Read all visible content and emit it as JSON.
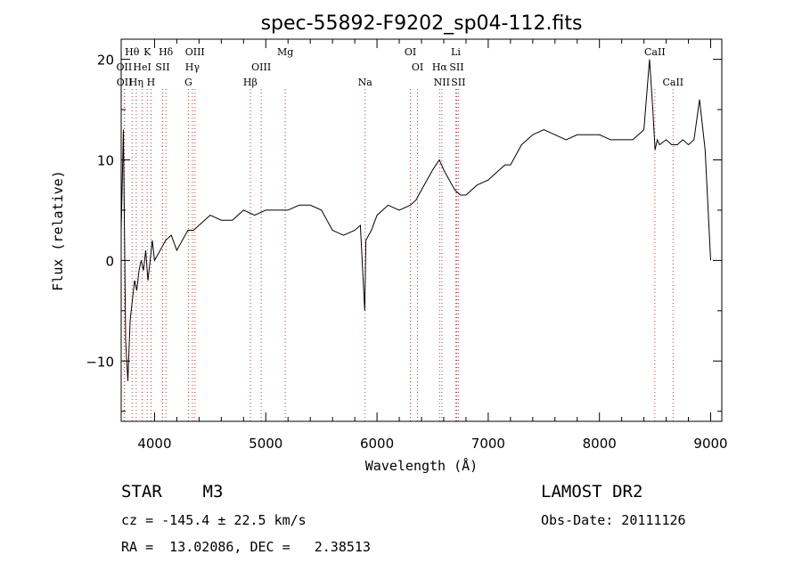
{
  "chart_data": {
    "type": "line",
    "title": "spec-55892-F9202_sp04-112.fits",
    "xlabel": "Wavelength (Å)",
    "ylabel": "Flux (relative)",
    "xlim": [
      3700,
      9100
    ],
    "ylim": [
      -16,
      22
    ],
    "xticks": [
      4000,
      5000,
      6000,
      7000,
      8000,
      9000
    ],
    "yticks": [
      -10,
      0,
      10,
      20
    ],
    "grid": false,
    "series": [
      {
        "x": [
          3700,
          3720,
          3740,
          3760,
          3780,
          3800,
          3820,
          3840,
          3860,
          3880,
          3900,
          3920,
          3940,
          3960,
          3980,
          4000,
          4050,
          4100,
          4150,
          4200,
          4250,
          4300,
          4350,
          4400,
          4450,
          4500,
          4600,
          4700,
          4800,
          4900,
          5000,
          5100,
          5200,
          5300,
          5400,
          5500,
          5600,
          5700,
          5800,
          5850,
          5890,
          5900,
          5950,
          6000,
          6100,
          6200,
          6300,
          6350,
          6400,
          6450,
          6500,
          6560,
          6600,
          6650,
          6700,
          6750,
          6800,
          6900,
          7000,
          7050,
          7100,
          7150,
          7200,
          7250,
          7300,
          7350,
          7400,
          7500,
          7600,
          7700,
          7800,
          7900,
          8000,
          8100,
          8200,
          8300,
          8400,
          8450,
          8480,
          8500,
          8520,
          8540,
          8600,
          8650,
          8700,
          8750,
          8800,
          8850,
          8900,
          8950,
          9000
        ],
        "y": [
          3,
          13,
          -8,
          -12,
          -6,
          -4,
          -2,
          -3,
          -1,
          0,
          -1,
          1,
          -2,
          0,
          2,
          0,
          1,
          2,
          2.5,
          1,
          2,
          3,
          3,
          3.5,
          4,
          4.5,
          4,
          4,
          5,
          4.5,
          5,
          5,
          5,
          5.5,
          5.5,
          5,
          3,
          2.5,
          3,
          3.5,
          -5,
          2,
          3,
          4.5,
          5.5,
          5,
          5.5,
          6,
          7,
          8,
          9,
          10,
          9,
          8,
          7,
          6.5,
          6.5,
          7.5,
          8,
          8.5,
          9,
          9.5,
          9.5,
          10.5,
          11.5,
          12,
          12.5,
          13,
          12.5,
          12,
          12.5,
          12.5,
          12.5,
          12,
          12,
          12,
          13,
          20,
          15,
          11,
          12,
          11.5,
          12,
          11.5,
          11.5,
          12,
          11.5,
          12,
          16,
          11,
          0
        ]
      }
    ],
    "line_labels": [
      {
        "name": "Hθ",
        "x": 3798,
        "row": 0
      },
      {
        "name": "K",
        "x": 3934,
        "row": 0
      },
      {
        "name": "Hδ",
        "x": 4102,
        "row": 0
      },
      {
        "name": "OIII",
        "x": 4363,
        "row": 0
      },
      {
        "name": "Mg",
        "x": 5175,
        "row": 0
      },
      {
        "name": "OI",
        "x": 6300,
        "row": 0
      },
      {
        "name": "Li",
        "x": 6708,
        "row": 0
      },
      {
        "name": "CaII",
        "x": 8498,
        "row": 0
      },
      {
        "name": "OII",
        "x": 3727,
        "row": 1
      },
      {
        "name": "HeI",
        "x": 3889,
        "row": 1
      },
      {
        "name": "SII",
        "x": 4072,
        "row": 1
      },
      {
        "name": "Hγ",
        "x": 4340,
        "row": 1
      },
      {
        "name": "OIII",
        "x": 4959,
        "row": 1
      },
      {
        "name": "OI",
        "x": 6364,
        "row": 1
      },
      {
        "name": "Hα",
        "x": 6563,
        "row": 1
      },
      {
        "name": "SII",
        "x": 6716,
        "row": 1
      },
      {
        "name": "OII",
        "x": 3729,
        "row": 2
      },
      {
        "name": "Hη",
        "x": 3835,
        "row": 2
      },
      {
        "name": "H",
        "x": 3968,
        "row": 2
      },
      {
        "name": "G",
        "x": 4304,
        "row": 2
      },
      {
        "name": "Hβ",
        "x": 4861,
        "row": 2
      },
      {
        "name": "Na",
        "x": 5893,
        "row": 2
      },
      {
        "name": "NII",
        "x": 6583,
        "row": 2
      },
      {
        "name": "SII",
        "x": 6731,
        "row": 2
      },
      {
        "name": "CaII",
        "x": 8662,
        "row": 2
      }
    ]
  },
  "info": {
    "object_class": "STAR    M3",
    "survey": "LAMOST DR2",
    "redshift": "cz = -145.4 ± 22.5 km/s",
    "obs_date": "Obs-Date: 20111126",
    "coords": "RA =  13.02086, DEC =   2.38513"
  }
}
